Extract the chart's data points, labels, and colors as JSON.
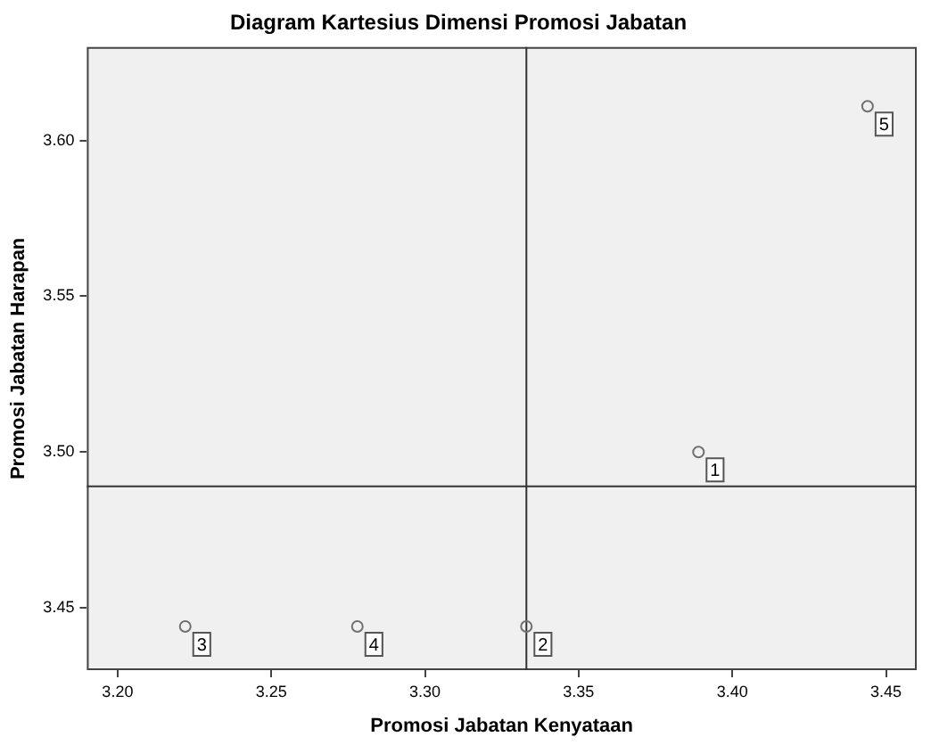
{
  "chart_data": {
    "type": "scatter",
    "title": "Diagram Kartesius Dimensi Promosi Jabatan",
    "xlabel": "Promosi Jabatan Kenyataan",
    "ylabel": "Promosi Jabatan Harapan",
    "x": [
      3.389,
      3.333,
      3.222,
      3.278,
      3.444
    ],
    "series": [
      {
        "color": "#707070",
        "values": [
          3.5,
          3.444,
          3.444,
          3.444,
          3.611
        ]
      }
    ],
    "annotations": [
      {
        "text": "1",
        "x": 3.389,
        "y": 3.5
      },
      {
        "text": "2",
        "x": 3.333,
        "y": 3.444
      },
      {
        "text": "3",
        "x": 3.222,
        "y": 3.444
      },
      {
        "text": "4",
        "x": 3.278,
        "y": 3.444
      },
      {
        "text": "5",
        "x": 3.444,
        "y": 3.611
      }
    ],
    "xlim": [
      3.19,
      3.46
    ],
    "xticks": [
      {
        "value": 3.2,
        "label": "3.20"
      },
      {
        "value": 3.25,
        "label": "3.25"
      },
      {
        "value": 3.3,
        "label": "3.30"
      },
      {
        "value": 3.35,
        "label": "3.35"
      },
      {
        "value": 3.4,
        "label": "3.40"
      },
      {
        "value": 3.45,
        "label": "3.45"
      }
    ],
    "ylim": [
      3.43,
      3.63
    ],
    "yticks": [
      {
        "value": 3.45,
        "label": "3.45"
      },
      {
        "value": 3.5,
        "label": "3.50"
      },
      {
        "value": 3.55,
        "label": "3.55"
      },
      {
        "value": 3.6,
        "label": "3.60"
      }
    ],
    "ref_lines": [
      {
        "axis": "x",
        "value": 3.333
      },
      {
        "axis": "y",
        "value": 3.489
      }
    ],
    "grid": false,
    "legend": false,
    "marker": "circle"
  }
}
